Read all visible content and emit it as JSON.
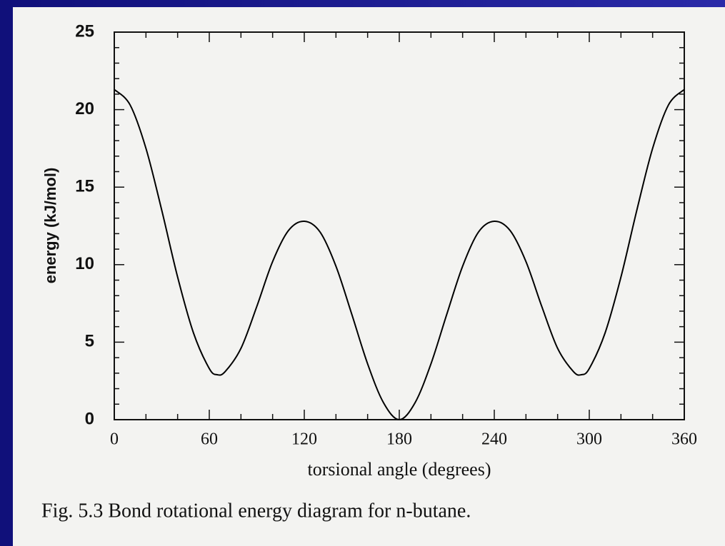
{
  "chart_data": {
    "type": "line",
    "caption": "Fig. 5.3 Bond rotational energy diagram for n-butane.",
    "xlabel": "torsional angle (degrees)",
    "ylabel": "energy (kJ/mol)",
    "x": [
      0,
      10,
      20,
      30,
      40,
      50,
      60,
      65,
      70,
      80,
      90,
      100,
      110,
      120,
      130,
      140,
      150,
      160,
      170,
      180,
      190,
      200,
      210,
      220,
      230,
      240,
      250,
      260,
      270,
      280,
      290,
      295,
      300,
      310,
      320,
      330,
      340,
      350,
      360
    ],
    "series": [
      {
        "color": "#000000",
        "values": [
          21.3,
          20.3,
          17.5,
          13.5,
          9.2,
          5.6,
          3.3,
          2.9,
          3.1,
          4.6,
          7.3,
          10.2,
          12.2,
          12.8,
          12.1,
          9.9,
          6.8,
          3.6,
          1.1,
          0,
          1.1,
          3.6,
          6.8,
          9.9,
          12.1,
          12.8,
          12.2,
          10.2,
          7.3,
          4.6,
          3.1,
          2.9,
          3.3,
          5.6,
          9.2,
          13.5,
          17.5,
          20.3,
          21.3
        ]
      }
    ],
    "xlim": [
      0,
      360
    ],
    "xticks": [
      0,
      60,
      120,
      180,
      240,
      300,
      360
    ],
    "x_minor_ticks": [
      20,
      40,
      80,
      100,
      140,
      160,
      200,
      220,
      260,
      280,
      320,
      340
    ],
    "ylim": [
      0,
      25
    ],
    "yticks": [
      0,
      5,
      10,
      15,
      20,
      25
    ],
    "y_minor_ticks": [
      1,
      2,
      3,
      4,
      6,
      7,
      8,
      9,
      11,
      12,
      13,
      14,
      16,
      17,
      18,
      19,
      21,
      22,
      23,
      24
    ]
  }
}
